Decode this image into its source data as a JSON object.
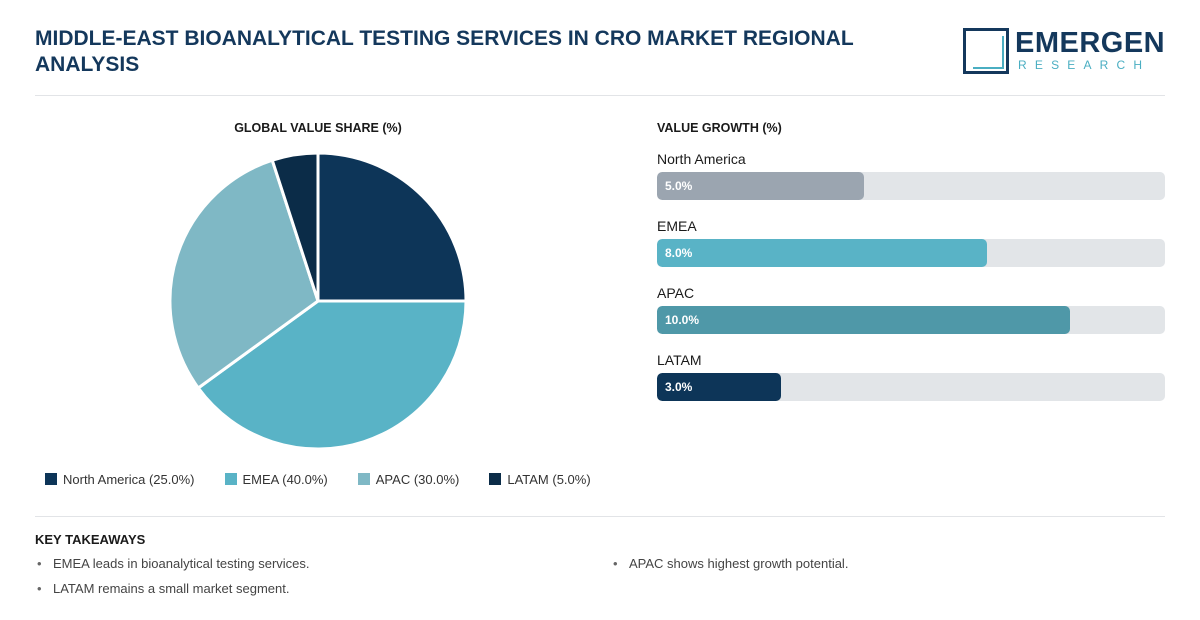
{
  "header": {
    "title": "MIDDLE-EAST BIOANALYTICAL TESTING SERVICES IN CRO MARKET REGIONAL ANALYSIS",
    "logo_word": "EMERGEN",
    "logo_sub": "RESEARCH"
  },
  "colors": {
    "navy": "#0d3558",
    "teal": "#59b3c6",
    "light_teal": "#7fb8c5",
    "dark_navy": "#0b2c48",
    "grey": "#9ba5b0",
    "deep_teal": "#4f98a8"
  },
  "chart_data": [
    {
      "type": "pie",
      "title": "GLOBAL VALUE SHARE (%)",
      "categories": [
        "North America",
        "EMEA",
        "APAC",
        "LATAM"
      ],
      "values": [
        25.0,
        40.0,
        30.0,
        5.0
      ],
      "unit": "%",
      "colors": [
        "#0d3558",
        "#59b3c6",
        "#7fb8c5",
        "#0b2c48"
      ],
      "legend_labels": [
        "North America (25.0%)",
        "EMEA (40.0%)",
        "APAC (30.0%)",
        "LATAM (5.0%)"
      ],
      "legend_position": "bottom"
    },
    {
      "type": "bar",
      "orientation": "horizontal",
      "title": "VALUE GROWTH (%)",
      "categories": [
        "North America",
        "EMEA",
        "APAC",
        "LATAM"
      ],
      "values": [
        5.0,
        8.0,
        10.0,
        3.0
      ],
      "value_labels": [
        "5.0%",
        "8.0%",
        "10.0%",
        "3.0%"
      ],
      "xlim": [
        0,
        12.3
      ],
      "colors": [
        "#9ba5b0",
        "#59b3c6",
        "#4f98a8",
        "#0d3558"
      ]
    }
  ],
  "takeaways": {
    "title": "KEY TAKEAWAYS",
    "left": [
      "EMEA leads in bioanalytical testing services.",
      "LATAM remains a small market segment."
    ],
    "right": [
      "APAC shows highest growth potential."
    ]
  }
}
